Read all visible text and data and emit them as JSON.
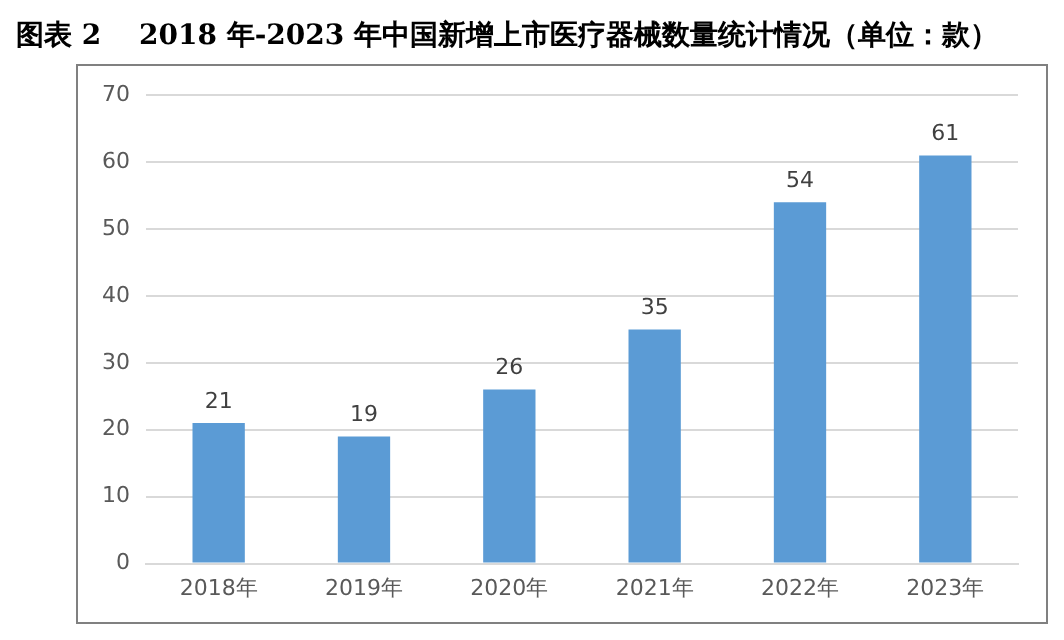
{
  "chart_data": {
    "type": "bar",
    "title": "图表 2　 2018 年-2023 年中国新增上市医疗器械数量统计情况（单位：款）",
    "categories": [
      "2018年",
      "2019年",
      "2020年",
      "2021年",
      "2022年",
      "2023年"
    ],
    "values": [
      21,
      19,
      26,
      35,
      54,
      61
    ],
    "color": "#5b9bd5",
    "ylim": [
      0,
      70
    ],
    "yticks": [
      0,
      10,
      20,
      30,
      40,
      50,
      60,
      70
    ],
    "grid": "y",
    "data_labels": true
  }
}
